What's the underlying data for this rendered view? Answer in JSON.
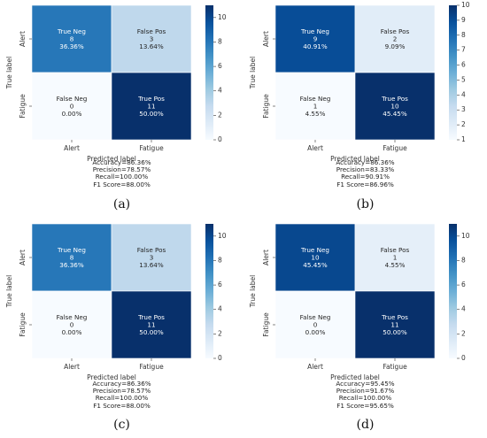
{
  "colors": {
    "low": "#f7fbff",
    "high": "#08306b",
    "text_dark": "#262626",
    "text_light": "#ffffff"
  },
  "chart_data": [
    {
      "type": "heatmap",
      "panel_label": "(a)",
      "xlabel": "Predicted label",
      "ylabel": "True label",
      "x_categories": [
        "Alert",
        "Fatigue"
      ],
      "y_categories": [
        "Alert",
        "Fatigue"
      ],
      "cells": [
        [
          {
            "name": "True Neg",
            "count": "8",
            "pct": "36.36%",
            "value": 8
          },
          {
            "name": "False Pos",
            "count": "3",
            "pct": "13.64%",
            "value": 3
          }
        ],
        [
          {
            "name": "False Neg",
            "count": "0",
            "pct": "0.00%",
            "value": 0
          },
          {
            "name": "True Pos",
            "count": "11",
            "pct": "50.00%",
            "value": 11
          }
        ]
      ],
      "colorbar": {
        "min": 0,
        "max": 11,
        "ticks": [
          "0",
          "2",
          "4",
          "6",
          "8",
          "10"
        ]
      },
      "metrics": [
        "Accuracy=86.36%",
        "Precision=78.57%",
        "Recall=100.00%",
        "F1 Score=88.00%"
      ]
    },
    {
      "type": "heatmap",
      "panel_label": "(b)",
      "xlabel": "Predicted label",
      "ylabel": "True label",
      "x_categories": [
        "Alert",
        "Fatigue"
      ],
      "y_categories": [
        "Alert",
        "Fatigue"
      ],
      "cells": [
        [
          {
            "name": "True Neg",
            "count": "9",
            "pct": "40.91%",
            "value": 9
          },
          {
            "name": "False Pos",
            "count": "2",
            "pct": "9.09%",
            "value": 2
          }
        ],
        [
          {
            "name": "False Neg",
            "count": "1",
            "pct": "4.55%",
            "value": 1
          },
          {
            "name": "True Pos",
            "count": "10",
            "pct": "45.45%",
            "value": 10
          }
        ]
      ],
      "colorbar": {
        "min": 1,
        "max": 10,
        "ticks": [
          "1",
          "2",
          "3",
          "4",
          "5",
          "6",
          "7",
          "8",
          "9",
          "10"
        ]
      },
      "metrics": [
        "Accuracy=86.36%",
        "Precision=83.33%",
        "Recall=90.91%",
        "F1 Score=86.96%"
      ]
    },
    {
      "type": "heatmap",
      "panel_label": "(c)",
      "xlabel": "Predicted label",
      "ylabel": "True label",
      "x_categories": [
        "Alert",
        "Fatigue"
      ],
      "y_categories": [
        "Alert",
        "Fatigue"
      ],
      "cells": [
        [
          {
            "name": "True Neg",
            "count": "8",
            "pct": "36.36%",
            "value": 8
          },
          {
            "name": "False Pos",
            "count": "3",
            "pct": "13.64%",
            "value": 3
          }
        ],
        [
          {
            "name": "False Neg",
            "count": "0",
            "pct": "0.00%",
            "value": 0
          },
          {
            "name": "True Pos",
            "count": "11",
            "pct": "50.00%",
            "value": 11
          }
        ]
      ],
      "colorbar": {
        "min": 0,
        "max": 11,
        "ticks": [
          "0",
          "2",
          "4",
          "6",
          "8",
          "10"
        ]
      },
      "metrics": [
        "Accuracy=86.36%",
        "Precision=78.57%",
        "Recall=100.00%",
        "F1 Score=88.00%"
      ]
    },
    {
      "type": "heatmap",
      "panel_label": "(d)",
      "xlabel": "Predicted label",
      "ylabel": "True label",
      "x_categories": [
        "Alert",
        "Fatigue"
      ],
      "y_categories": [
        "Alert",
        "Fatigue"
      ],
      "cells": [
        [
          {
            "name": "True Neg",
            "count": "10",
            "pct": "45.45%",
            "value": 10
          },
          {
            "name": "False Pos",
            "count": "1",
            "pct": "4.55%",
            "value": 1
          }
        ],
        [
          {
            "name": "False Neg",
            "count": "0",
            "pct": "0.00%",
            "value": 0
          },
          {
            "name": "True Pos",
            "count": "11",
            "pct": "50.00%",
            "value": 11
          }
        ]
      ],
      "colorbar": {
        "min": 0,
        "max": 11,
        "ticks": [
          "0",
          "2",
          "4",
          "6",
          "8",
          "10"
        ]
      },
      "metrics": [
        "Accuracy=95.45%",
        "Precision=91.67%",
        "Recall=100.00%",
        "F1 Score=95.65%"
      ]
    }
  ]
}
